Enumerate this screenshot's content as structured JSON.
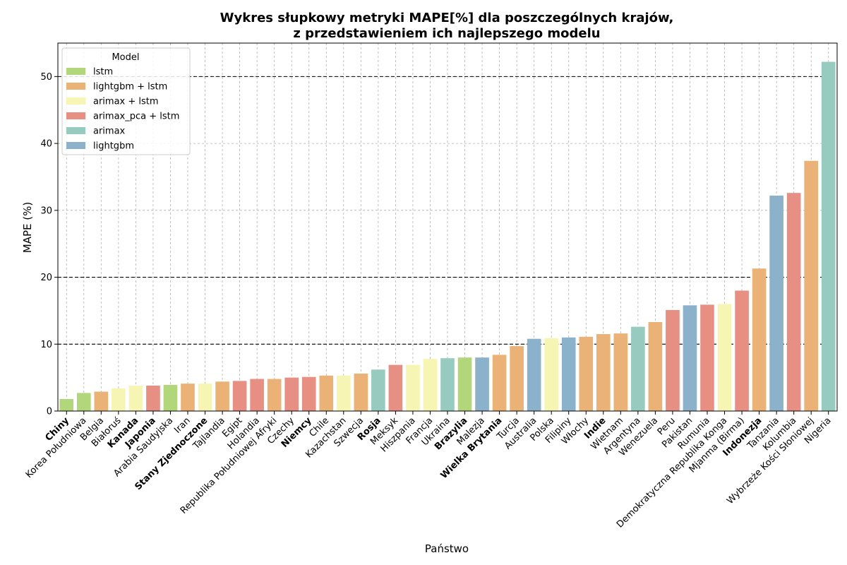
{
  "chart_data": {
    "type": "bar",
    "title_line1": "Wykres słupkowy metryki MAPE[%] dla poszczególnych krajów,",
    "title_line2": "z przedstawieniem ich najlepszego modelu",
    "xlabel": "Państwo",
    "ylabel": "MAPE (%)",
    "ylim": [
      0,
      55
    ],
    "yticks": [
      0,
      10,
      20,
      30,
      40,
      50
    ],
    "reference_lines": [
      10,
      20,
      50
    ],
    "grid": true,
    "legend_title": "Model",
    "legend_position": "top-left",
    "legend": [
      {
        "model": "lstm",
        "color": "#b2d67a"
      },
      {
        "model": "lightgbm + lstm",
        "color": "#eab276"
      },
      {
        "model": "arimax + lstm",
        "color": "#f7f5b4"
      },
      {
        "model": "arimax_pca + lstm",
        "color": "#e88f84"
      },
      {
        "model": "arimax",
        "color": "#98cbbf"
      },
      {
        "model": "lightgbm",
        "color": "#8cb1cb"
      }
    ],
    "bars": [
      {
        "country": "Chiny",
        "value": 1.8,
        "model": "lstm",
        "bold": true
      },
      {
        "country": "Korea Południowa",
        "value": 2.7,
        "model": "lstm",
        "bold": false
      },
      {
        "country": "Belgia",
        "value": 2.9,
        "model": "lightgbm + lstm",
        "bold": false
      },
      {
        "country": "Białoruś",
        "value": 3.4,
        "model": "arimax + lstm",
        "bold": false
      },
      {
        "country": "Kanada",
        "value": 3.8,
        "model": "arimax + lstm",
        "bold": true
      },
      {
        "country": "Japonia",
        "value": 3.8,
        "model": "arimax_pca + lstm",
        "bold": true
      },
      {
        "country": "Arabia Saudyjska",
        "value": 3.9,
        "model": "lstm",
        "bold": false
      },
      {
        "country": "Iran",
        "value": 4.1,
        "model": "lightgbm + lstm",
        "bold": false
      },
      {
        "country": "Stany Zjednoczone",
        "value": 4.1,
        "model": "arimax + lstm",
        "bold": true
      },
      {
        "country": "Tajlandia",
        "value": 4.4,
        "model": "lightgbm + lstm",
        "bold": false
      },
      {
        "country": "Egipt",
        "value": 4.5,
        "model": "arimax_pca + lstm",
        "bold": false
      },
      {
        "country": "Holandia",
        "value": 4.8,
        "model": "arimax_pca + lstm",
        "bold": false
      },
      {
        "country": "Republika Południowej Afryki",
        "value": 4.8,
        "model": "lightgbm + lstm",
        "bold": false
      },
      {
        "country": "Czechy",
        "value": 5.0,
        "model": "arimax_pca + lstm",
        "bold": false
      },
      {
        "country": "Niemcy",
        "value": 5.1,
        "model": "arimax_pca + lstm",
        "bold": true
      },
      {
        "country": "Chile",
        "value": 5.3,
        "model": "lightgbm + lstm",
        "bold": false
      },
      {
        "country": "Kazachstan",
        "value": 5.3,
        "model": "arimax + lstm",
        "bold": false
      },
      {
        "country": "Szwecja",
        "value": 5.6,
        "model": "lightgbm + lstm",
        "bold": false
      },
      {
        "country": "Rosja",
        "value": 6.2,
        "model": "arimax",
        "bold": true
      },
      {
        "country": "Meksyk",
        "value": 6.9,
        "model": "arimax_pca + lstm",
        "bold": false
      },
      {
        "country": "Hiszpania",
        "value": 6.9,
        "model": "arimax + lstm",
        "bold": false
      },
      {
        "country": "Francja",
        "value": 7.8,
        "model": "arimax + lstm",
        "bold": false
      },
      {
        "country": "Ukraina",
        "value": 7.9,
        "model": "arimax",
        "bold": false
      },
      {
        "country": "Brazylia",
        "value": 8.0,
        "model": "lstm",
        "bold": true
      },
      {
        "country": "Malezja",
        "value": 8.0,
        "model": "lightgbm",
        "bold": false
      },
      {
        "country": "Wielka Brytania",
        "value": 8.4,
        "model": "lightgbm + lstm",
        "bold": true
      },
      {
        "country": "Turcja",
        "value": 9.7,
        "model": "lightgbm + lstm",
        "bold": false
      },
      {
        "country": "Australia",
        "value": 10.8,
        "model": "lightgbm",
        "bold": false
      },
      {
        "country": "Polska",
        "value": 10.9,
        "model": "arimax + lstm",
        "bold": false
      },
      {
        "country": "Filipiny",
        "value": 11.0,
        "model": "lightgbm",
        "bold": false
      },
      {
        "country": "Włochy",
        "value": 11.1,
        "model": "lightgbm + lstm",
        "bold": false
      },
      {
        "country": "Indie",
        "value": 11.5,
        "model": "lightgbm + lstm",
        "bold": true
      },
      {
        "country": "Wietnam",
        "value": 11.6,
        "model": "lightgbm + lstm",
        "bold": false
      },
      {
        "country": "Argentyna",
        "value": 12.6,
        "model": "arimax",
        "bold": false
      },
      {
        "country": "Wenezuela",
        "value": 13.3,
        "model": "lightgbm + lstm",
        "bold": false
      },
      {
        "country": "Peru",
        "value": 15.1,
        "model": "arimax_pca + lstm",
        "bold": false
      },
      {
        "country": "Pakistan",
        "value": 15.8,
        "model": "lightgbm",
        "bold": false
      },
      {
        "country": "Rumunia",
        "value": 15.9,
        "model": "arimax_pca + lstm",
        "bold": false
      },
      {
        "country": "Demokratyczna Republika Konga",
        "value": 16.0,
        "model": "arimax + lstm",
        "bold": false
      },
      {
        "country": "Mjanma (Birma)",
        "value": 18.0,
        "model": "arimax_pca + lstm",
        "bold": false
      },
      {
        "country": "Indonezja",
        "value": 21.3,
        "model": "lightgbm + lstm",
        "bold": true
      },
      {
        "country": "Tanzania",
        "value": 32.2,
        "model": "lightgbm",
        "bold": false
      },
      {
        "country": "Kolumbia",
        "value": 32.6,
        "model": "arimax_pca + lstm",
        "bold": false
      },
      {
        "country": "Wybrzeże Kości Słoniowej",
        "value": 37.4,
        "model": "lightgbm + lstm",
        "bold": false
      },
      {
        "country": "Nigeria",
        "value": 52.2,
        "model": "arimax",
        "bold": false
      }
    ]
  }
}
